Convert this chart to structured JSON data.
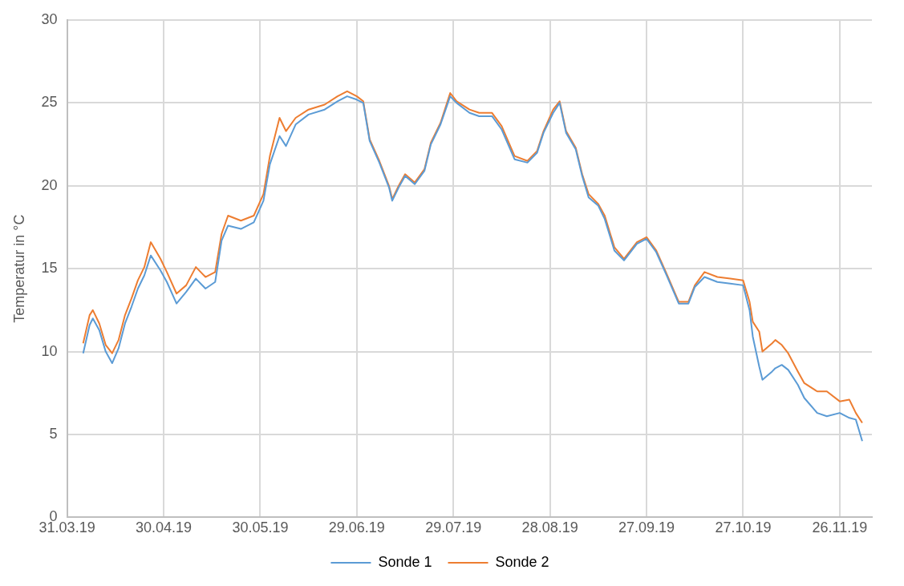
{
  "chart_data": {
    "type": "line",
    "ylabel": "Temperatur in °C",
    "x": [
      "2019-04-05",
      "2019-04-07",
      "2019-04-08",
      "2019-04-10",
      "2019-04-12",
      "2019-04-14",
      "2019-04-16",
      "2019-04-18",
      "2019-04-20",
      "2019-04-22",
      "2019-04-24",
      "2019-04-26",
      "2019-04-29",
      "2019-05-01",
      "2019-05-04",
      "2019-05-07",
      "2019-05-10",
      "2019-05-13",
      "2019-05-16",
      "2019-05-18",
      "2019-05-20",
      "2019-05-24",
      "2019-05-28",
      "2019-05-31",
      "2019-06-02",
      "2019-06-05",
      "2019-06-07",
      "2019-06-10",
      "2019-06-14",
      "2019-06-19",
      "2019-06-23",
      "2019-06-26",
      "2019-06-29",
      "2019-07-01",
      "2019-07-03",
      "2019-07-06",
      "2019-07-09",
      "2019-07-10",
      "2019-07-12",
      "2019-07-14",
      "2019-07-17",
      "2019-07-20",
      "2019-07-22",
      "2019-07-25",
      "2019-07-28",
      "2019-07-30",
      "2019-08-03",
      "2019-08-06",
      "2019-08-10",
      "2019-08-13",
      "2019-08-17",
      "2019-08-21",
      "2019-08-24",
      "2019-08-26",
      "2019-08-29",
      "2019-08-31",
      "2019-09-02",
      "2019-09-05",
      "2019-09-07",
      "2019-09-09",
      "2019-09-12",
      "2019-09-14",
      "2019-09-17",
      "2019-09-20",
      "2019-09-24",
      "2019-09-27",
      "2019-09-30",
      "2019-10-03",
      "2019-10-07",
      "2019-10-10",
      "2019-10-12",
      "2019-10-15",
      "2019-10-19",
      "2019-10-23",
      "2019-10-27",
      "2019-10-29",
      "2019-10-30",
      "2019-11-01",
      "2019-11-02",
      "2019-11-05",
      "2019-11-06",
      "2019-11-08",
      "2019-11-10",
      "2019-11-13",
      "2019-11-15",
      "2019-11-19",
      "2019-11-22",
      "2019-11-26",
      "2019-11-29",
      "2019-12-01",
      "2019-12-03"
    ],
    "series": [
      {
        "name": "Sonde 1",
        "color": "#5b9bd5",
        "values": [
          9.9,
          11.6,
          12.0,
          11.3,
          10.0,
          9.3,
          10.2,
          11.7,
          12.7,
          13.8,
          14.6,
          15.8,
          14.9,
          14.2,
          12.9,
          13.6,
          14.4,
          13.8,
          14.2,
          16.7,
          17.6,
          17.4,
          17.8,
          19.1,
          21.3,
          23.0,
          22.4,
          23.7,
          24.3,
          24.6,
          25.1,
          25.4,
          25.2,
          25.0,
          22.7,
          21.4,
          19.9,
          19.1,
          19.9,
          20.6,
          20.1,
          20.9,
          22.5,
          23.7,
          25.4,
          25.0,
          24.4,
          24.2,
          24.2,
          23.4,
          21.6,
          21.4,
          22.0,
          23.2,
          24.4,
          25.0,
          23.2,
          22.2,
          20.6,
          19.3,
          18.8,
          18.0,
          16.1,
          15.5,
          16.5,
          16.8,
          16.0,
          14.7,
          12.9,
          12.9,
          13.9,
          14.5,
          14.2,
          14.1,
          14.0,
          12.5,
          10.9,
          9.1,
          8.3,
          8.8,
          9.0,
          9.2,
          8.9,
          8.0,
          7.2,
          6.3,
          6.1,
          6.3,
          6.0,
          5.9,
          4.6
        ]
      },
      {
        "name": "Sonde 2",
        "color": "#ed7d31",
        "values": [
          10.5,
          12.2,
          12.5,
          11.7,
          10.4,
          9.9,
          10.7,
          12.2,
          13.2,
          14.3,
          15.1,
          16.6,
          15.6,
          14.8,
          13.5,
          14.0,
          15.1,
          14.5,
          14.8,
          17.1,
          18.2,
          17.9,
          18.2,
          19.5,
          21.8,
          24.1,
          23.3,
          24.1,
          24.6,
          24.9,
          25.4,
          25.7,
          25.4,
          25.1,
          22.8,
          21.5,
          20.0,
          19.2,
          20.0,
          20.7,
          20.2,
          21.0,
          22.6,
          23.8,
          25.6,
          25.1,
          24.6,
          24.4,
          24.4,
          23.6,
          21.8,
          21.5,
          22.1,
          23.3,
          24.6,
          25.1,
          23.3,
          22.3,
          20.7,
          19.5,
          18.9,
          18.2,
          16.3,
          15.6,
          16.6,
          16.9,
          16.1,
          14.8,
          13.0,
          13.0,
          14.0,
          14.8,
          14.5,
          14.4,
          14.3,
          13.0,
          11.8,
          11.2,
          10.0,
          10.5,
          10.7,
          10.4,
          9.9,
          8.8,
          8.1,
          7.6,
          7.6,
          7.0,
          7.1,
          6.3,
          5.7
        ]
      }
    ],
    "xlim": [
      "2019-03-31",
      "2019-12-06"
    ],
    "xticks": [
      {
        "value": "2019-03-31",
        "label": "31.03.19"
      },
      {
        "value": "2019-04-30",
        "label": "30.04.19"
      },
      {
        "value": "2019-05-30",
        "label": "30.05.19"
      },
      {
        "value": "2019-06-29",
        "label": "29.06.19"
      },
      {
        "value": "2019-07-29",
        "label": "29.07.19"
      },
      {
        "value": "2019-08-28",
        "label": "28.08.19"
      },
      {
        "value": "2019-09-27",
        "label": "27.09.19"
      },
      {
        "value": "2019-10-27",
        "label": "27.10.19"
      },
      {
        "value": "2019-11-26",
        "label": "26.11.19"
      }
    ],
    "ylim": [
      0,
      30
    ],
    "yticks": [
      0,
      5,
      10,
      15,
      20,
      25,
      30
    ],
    "grid": true,
    "legend": "bottom",
    "marker": "none",
    "line_style": "solid"
  }
}
